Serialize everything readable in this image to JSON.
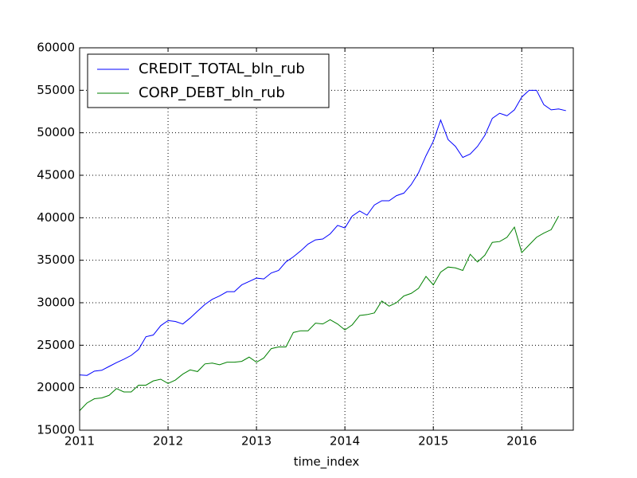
{
  "chart_data": {
    "type": "line",
    "x_label": "time_index",
    "x": [
      2011,
      2011.083,
      2011.167,
      2011.25,
      2011.333,
      2011.417,
      2011.5,
      2011.583,
      2011.667,
      2011.75,
      2011.833,
      2011.917,
      2012,
      2012.083,
      2012.167,
      2012.25,
      2012.333,
      2012.417,
      2012.5,
      2012.583,
      2012.667,
      2012.75,
      2012.833,
      2012.917,
      2013,
      2013.083,
      2013.167,
      2013.25,
      2013.333,
      2013.417,
      2013.5,
      2013.583,
      2013.667,
      2013.75,
      2013.833,
      2013.917,
      2014,
      2014.083,
      2014.167,
      2014.25,
      2014.333,
      2014.417,
      2014.5,
      2014.583,
      2014.667,
      2014.75,
      2014.833,
      2014.917,
      2015,
      2015.083,
      2015.167,
      2015.25,
      2015.333,
      2015.417,
      2015.5,
      2015.583,
      2015.667,
      2015.75,
      2015.833,
      2015.917,
      2016,
      2016.083,
      2016.167,
      2016.25,
      2016.333,
      2016.417,
      2016.5
    ],
    "series": [
      {
        "name": "CREDIT_TOTAL_bln_rub",
        "color": "#0000ff",
        "values": [
          21500,
          21450,
          21950,
          22050,
          22500,
          22950,
          23350,
          23800,
          24500,
          26000,
          26200,
          27300,
          27900,
          27800,
          27500,
          28200,
          29000,
          29800,
          30400,
          30800,
          31300,
          31300,
          32100,
          32500,
          32900,
          32800,
          33500,
          33800,
          34800,
          35400,
          36100,
          36900,
          37400,
          37500,
          38100,
          39100,
          38800,
          40200,
          40800,
          40300,
          41500,
          42000,
          42000,
          42600,
          42900,
          43900,
          45300,
          47300,
          49000,
          51500,
          49200,
          48400,
          47100,
          47500,
          48400,
          49700,
          51700,
          52300,
          52000,
          52700,
          54200,
          55000,
          55000,
          53300,
          52700,
          52800,
          52600
        ]
      },
      {
        "name": "CORP_DEBT_bln_rub",
        "color": "#008000",
        "values": [
          17300,
          18200,
          18700,
          18800,
          19100,
          19900,
          19500,
          19500,
          20300,
          20300,
          20800,
          21000,
          20500,
          20900,
          21600,
          22100,
          21900,
          22800,
          22900,
          22700,
          23000,
          23000,
          23100,
          23600,
          23000,
          23500,
          24600,
          24800,
          24800,
          26500,
          26700,
          26700,
          27600,
          27500,
          28000,
          27500,
          26800,
          27400,
          28500,
          28600,
          28800,
          30200,
          29600,
          30000,
          30800,
          31100,
          31700,
          33100,
          32100,
          33600,
          34200,
          34100,
          33800,
          35700,
          34800,
          35600,
          37100,
          37200,
          37700,
          38900,
          35900,
          36800,
          37700,
          38200,
          38600,
          40200,
          null
        ]
      }
    ],
    "xlim": [
      2011,
      2016.583
    ],
    "xticks": [
      2011,
      2012,
      2013,
      2014,
      2015,
      2016
    ],
    "ylim": [
      15000,
      60000
    ],
    "yticks": [
      15000,
      20000,
      25000,
      30000,
      35000,
      40000,
      45000,
      50000,
      55000,
      60000
    ],
    "grid": true,
    "legend": "upper left"
  }
}
